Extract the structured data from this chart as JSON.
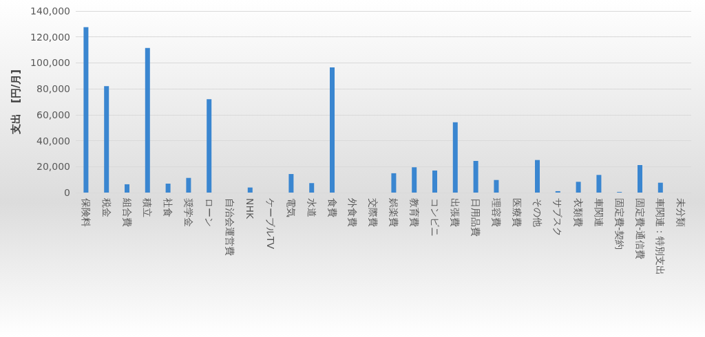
{
  "chart_data": {
    "type": "bar",
    "ylabel": "支出　[円/月]",
    "categories": [
      "保険料",
      "税金",
      "組合費",
      "積立",
      "社食",
      "奨学金",
      "ローン",
      "自治会運営費",
      "NHK",
      "ケーブルTV",
      "電気",
      "水道",
      "食費",
      "外食費",
      "交際費",
      "娯楽費",
      "教育費",
      "コンビニ",
      "出張費",
      "日用品費",
      "理容費",
      "医療費",
      "その他",
      "サブスク",
      "衣類費",
      "車関連",
      "固定費-契約",
      "固定費-通信費",
      "車関連：特別支出",
      "未分類"
    ],
    "values": [
      127600,
      82100,
      6400,
      111500,
      6900,
      11300,
      72000,
      0,
      3900,
      0,
      14300,
      7300,
      96500,
      0,
      0,
      14900,
      19500,
      17000,
      54200,
      24400,
      9700,
      0,
      25100,
      1100,
      8300,
      13600,
      500,
      21200,
      7600,
      0
    ],
    "color": "#3a86d0",
    "ylim": [
      0,
      140000
    ],
    "yticks": [
      {
        "value": 0,
        "label": "0"
      },
      {
        "value": 20000,
        "label": "20,000"
      },
      {
        "value": 40000,
        "label": "40,000"
      },
      {
        "value": 60000,
        "label": "60,000"
      },
      {
        "value": 80000,
        "label": "80,000"
      },
      {
        "value": 100000,
        "label": "100,000"
      },
      {
        "value": 120000,
        "label": "120,000"
      },
      {
        "value": 140000,
        "label": "140,000"
      }
    ],
    "grid": "y"
  }
}
